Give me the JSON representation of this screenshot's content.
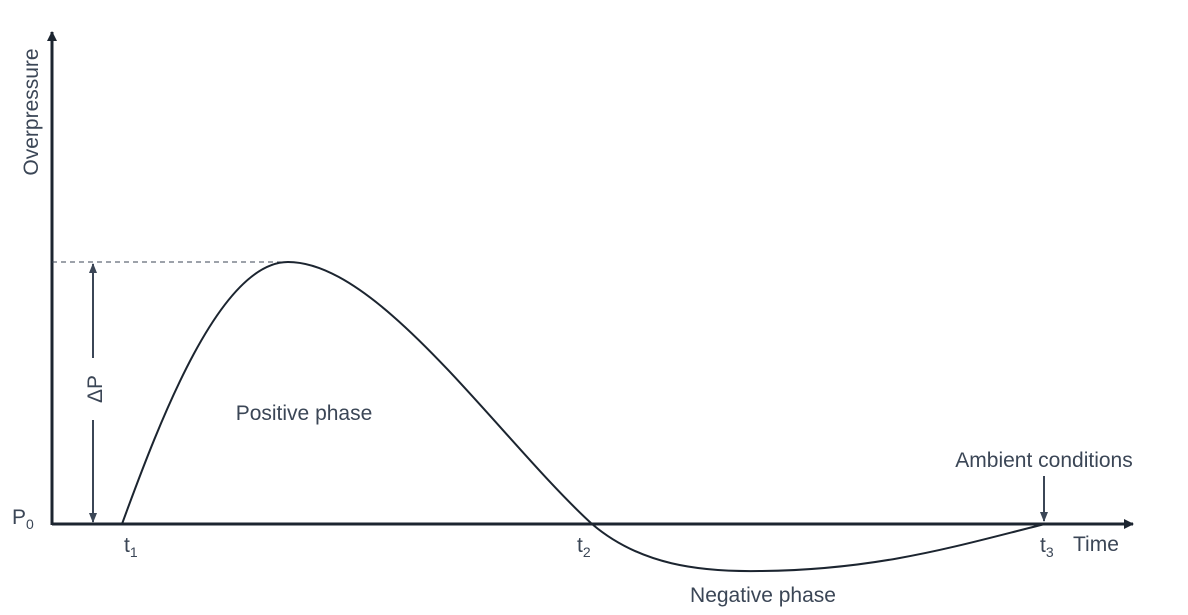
{
  "axes": {
    "y_label": "Overpressure",
    "x_label": "Time"
  },
  "labels": {
    "p0": {
      "base": "P",
      "sub": "0"
    },
    "delta_p": "ΔP",
    "t1": {
      "base": "t",
      "sub": "1"
    },
    "t2": {
      "base": "t",
      "sub": "2"
    },
    "t3": {
      "base": "t",
      "sub": "3"
    },
    "positive_phase": "Positive phase",
    "negative_phase": "Negative phase",
    "ambient": "Ambient conditions"
  }
}
